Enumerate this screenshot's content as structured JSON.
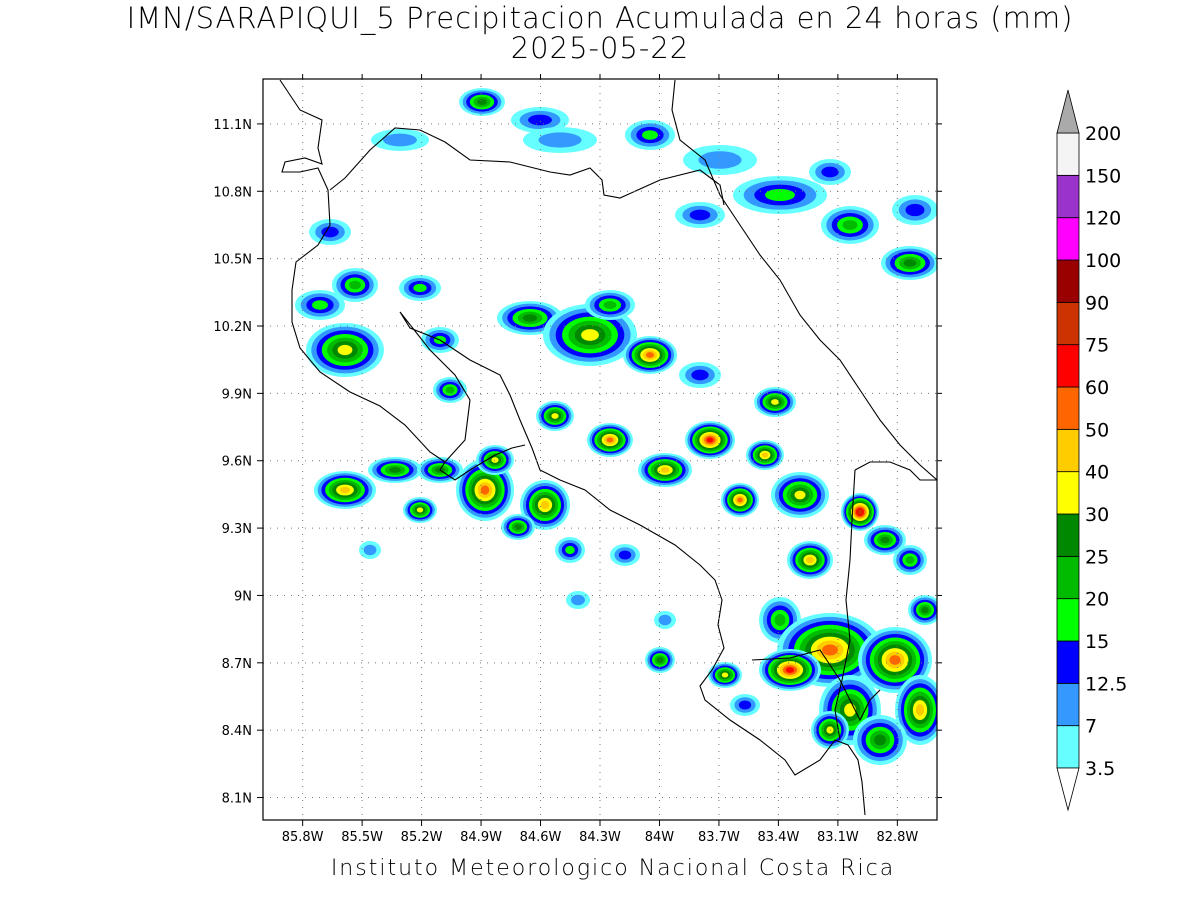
{
  "title": {
    "line1": "IMN/SARAPIQUI_5 Precipitacion Acumulada en 24 horas (mm)",
    "line2": "2025-05-22"
  },
  "footer": "Instituto Meteorologico Nacional Costa Rica",
  "axes": {
    "lat_ticks": [
      {
        "value": 11.1,
        "label": "11.1N"
      },
      {
        "value": 10.8,
        "label": "10.8N"
      },
      {
        "value": 10.5,
        "label": "10.5N"
      },
      {
        "value": 10.2,
        "label": "10.2N"
      },
      {
        "value": 9.9,
        "label": "9.9N"
      },
      {
        "value": 9.6,
        "label": "9.6N"
      },
      {
        "value": 9.3,
        "label": "9.3N"
      },
      {
        "value": 9.0,
        "label": "9N"
      },
      {
        "value": 8.7,
        "label": "8.7N"
      },
      {
        "value": 8.4,
        "label": "8.4N"
      },
      {
        "value": 8.1,
        "label": "8.1N"
      }
    ],
    "lon_ticks": [
      {
        "value": -85.8,
        "label": "85.8W"
      },
      {
        "value": -85.5,
        "label": "85.5W"
      },
      {
        "value": -85.2,
        "label": "85.2W"
      },
      {
        "value": -84.9,
        "label": "84.9W"
      },
      {
        "value": -84.6,
        "label": "84.6W"
      },
      {
        "value": -84.3,
        "label": "84.3W"
      },
      {
        "value": -84.0,
        "label": "84W"
      },
      {
        "value": -83.7,
        "label": "83.7W"
      },
      {
        "value": -83.4,
        "label": "83.4W"
      },
      {
        "value": -83.1,
        "label": "83.1W"
      },
      {
        "value": -82.8,
        "label": "82.8W"
      }
    ],
    "lon_range": [
      -86.0,
      -82.6
    ],
    "lat_range": [
      8.0,
      11.3
    ],
    "grid": "dotted"
  },
  "colorbar": {
    "levels": [
      "3.5",
      "7",
      "12.5",
      "15",
      "20",
      "25",
      "30",
      "40",
      "50",
      "60",
      "75",
      "90",
      "100",
      "120",
      "150",
      "200"
    ],
    "colors": [
      "#66ffff",
      "#3399ff",
      "#0000ff",
      "#00ff00",
      "#00bb00",
      "#008800",
      "#ffff00",
      "#ffcc00",
      "#ff6600",
      "#ff0000",
      "#cc3300",
      "#990000",
      "#ff00ff",
      "#9933cc",
      "#f4f4f4",
      "#aaaaaa"
    ]
  }
}
